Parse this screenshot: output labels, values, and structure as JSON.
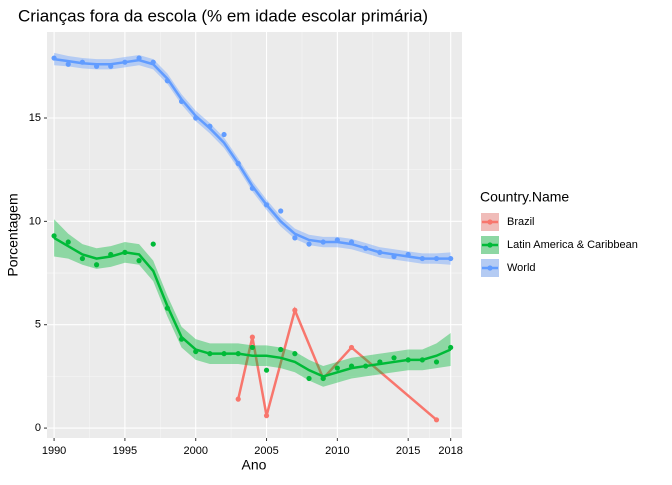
{
  "chart_data": {
    "type": "line",
    "title": "Crianças fora da escola (% em idade escolar primária)",
    "x_label": "Ano",
    "y_label": "Porcentagem",
    "legend_title": "Country.Name",
    "xlim": [
      1989.5,
      2018.8
    ],
    "xticks": [
      1990,
      1995,
      2000,
      2005,
      2010,
      2015,
      2018
    ],
    "ylim": [
      -0.48,
      19.16
    ],
    "yticks": [
      0,
      5,
      10,
      15
    ],
    "grid": true,
    "legend": "right",
    "series": [
      {
        "name": "Brazil",
        "color": "#F8766D",
        "x": [
          2003,
          2004,
          2005,
          2007,
          2009,
          2011,
          2017
        ],
        "values": [
          1.4,
          4.4,
          0.6,
          5.7,
          2.4,
          3.9,
          0.4
        ]
      },
      {
        "name": "Latin America & Caribbean",
        "color": "#00BA38",
        "x": [
          1990,
          1991,
          1992,
          1993,
          1994,
          1995,
          1996,
          1997,
          1998,
          1999,
          2000,
          2001,
          2002,
          2003,
          2004,
          2005,
          2006,
          2007,
          2008,
          2009,
          2010,
          2011,
          2012,
          2013,
          2014,
          2015,
          2016,
          2017,
          2018
        ],
        "values": [
          9.3,
          9.0,
          8.2,
          7.9,
          8.4,
          8.5,
          8.1,
          8.9,
          5.8,
          4.3,
          3.7,
          3.6,
          3.6,
          3.6,
          3.9,
          2.8,
          3.8,
          3.6,
          2.4,
          2.4,
          2.9,
          3.0,
          3.0,
          3.2,
          3.4,
          3.3,
          3.3,
          3.2,
          3.9
        ],
        "smooth": [
          9.2,
          8.8,
          8.4,
          8.2,
          8.3,
          8.5,
          8.4,
          7.6,
          5.9,
          4.4,
          3.8,
          3.6,
          3.6,
          3.6,
          3.5,
          3.5,
          3.4,
          3.2,
          2.8,
          2.5,
          2.7,
          2.9,
          3.0,
          3.1,
          3.2,
          3.3,
          3.3,
          3.5,
          3.8
        ],
        "lower": [
          8.3,
          8.2,
          7.9,
          7.7,
          7.8,
          8.0,
          7.9,
          7.1,
          5.4,
          3.9,
          3.3,
          3.1,
          3.1,
          3.1,
          3.0,
          3.0,
          2.9,
          2.7,
          2.3,
          2.0,
          2.2,
          2.4,
          2.5,
          2.6,
          2.7,
          2.8,
          2.8,
          2.9,
          3.0
        ],
        "upper": [
          10.1,
          9.4,
          8.9,
          8.7,
          8.8,
          9.0,
          8.9,
          8.1,
          6.4,
          4.9,
          4.3,
          4.1,
          4.1,
          4.1,
          4.0,
          4.0,
          3.9,
          3.7,
          3.3,
          3.0,
          3.2,
          3.4,
          3.5,
          3.6,
          3.7,
          3.8,
          3.8,
          4.1,
          4.6
        ]
      },
      {
        "name": "World",
        "color": "#619CFF",
        "x": [
          1990,
          1991,
          1992,
          1993,
          1994,
          1995,
          1996,
          1997,
          1998,
          1999,
          2000,
          2001,
          2002,
          2003,
          2004,
          2005,
          2006,
          2007,
          2008,
          2009,
          2010,
          2011,
          2012,
          2013,
          2014,
          2015,
          2016,
          2017,
          2018
        ],
        "values": [
          17.9,
          17.6,
          17.7,
          17.5,
          17.5,
          17.7,
          17.9,
          17.7,
          16.8,
          15.8,
          15.0,
          14.6,
          14.2,
          12.8,
          11.6,
          10.8,
          10.5,
          9.2,
          8.9,
          9.0,
          9.1,
          9.0,
          8.7,
          8.5,
          8.3,
          8.4,
          8.2,
          8.2,
          8.2
        ],
        "smooth": [
          17.85,
          17.75,
          17.65,
          17.6,
          17.6,
          17.7,
          17.8,
          17.6,
          16.9,
          15.9,
          15.1,
          14.5,
          13.8,
          12.8,
          11.7,
          10.8,
          10.0,
          9.4,
          9.1,
          9.0,
          9.0,
          8.9,
          8.7,
          8.5,
          8.4,
          8.3,
          8.2,
          8.2,
          8.2
        ],
        "lower": [
          17.55,
          17.5,
          17.4,
          17.35,
          17.35,
          17.45,
          17.55,
          17.35,
          16.65,
          15.65,
          14.85,
          14.25,
          13.55,
          12.55,
          11.45,
          10.55,
          9.75,
          9.15,
          8.85,
          8.75,
          8.75,
          8.65,
          8.45,
          8.25,
          8.15,
          8.05,
          7.95,
          7.95,
          7.9
        ],
        "upper": [
          18.15,
          18.0,
          17.9,
          17.85,
          17.85,
          17.95,
          18.05,
          17.85,
          17.15,
          16.15,
          15.35,
          14.75,
          14.05,
          13.05,
          11.95,
          11.05,
          10.25,
          9.65,
          9.35,
          9.25,
          9.25,
          9.15,
          8.95,
          8.75,
          8.65,
          8.55,
          8.45,
          8.45,
          8.5
        ]
      }
    ]
  }
}
